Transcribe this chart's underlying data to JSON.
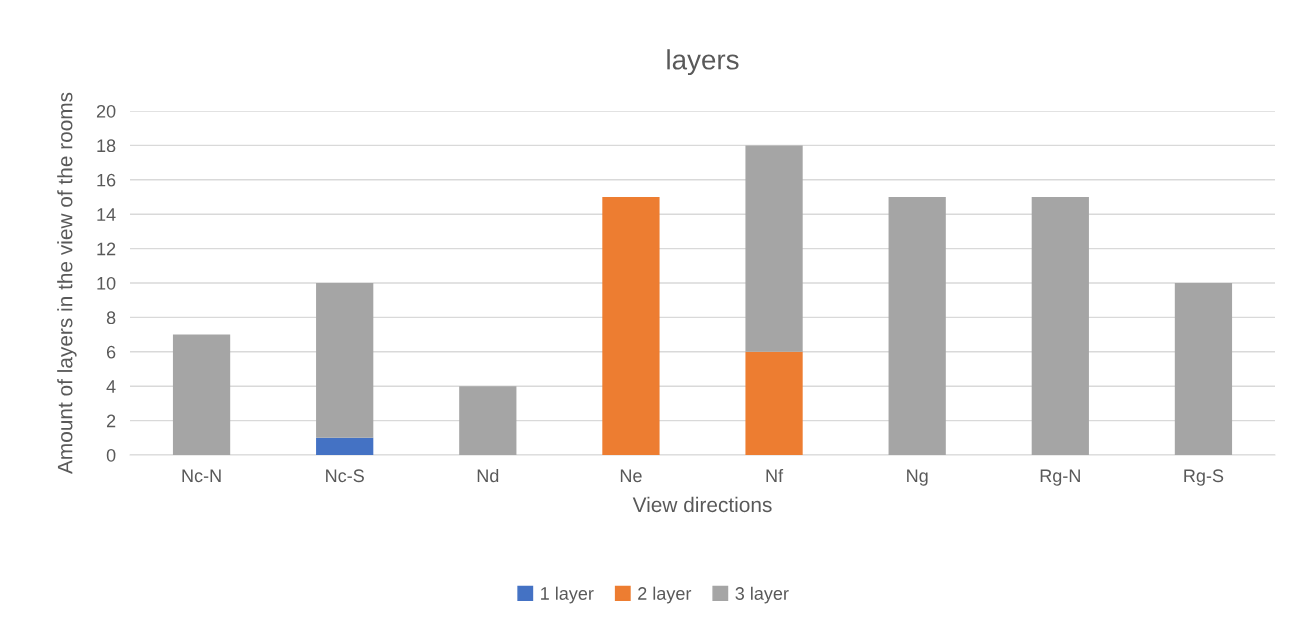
{
  "chart_data": {
    "type": "bar",
    "title": "layers",
    "xlabel": "View directions",
    "ylabel": "Amount of layers in the view of the rooms",
    "categories": [
      "Nc-N",
      "Nc-S",
      "Nd",
      "Ne",
      "Nf",
      "Ng",
      "Rg-N",
      "Rg-S"
    ],
    "series": [
      {
        "name": "1 layer",
        "color": "#4472c4",
        "values": [
          null,
          1,
          null,
          null,
          null,
          null,
          null,
          null
        ]
      },
      {
        "name": "2 layer",
        "color": "#ed7d31",
        "values": [
          null,
          null,
          null,
          15,
          6,
          null,
          null,
          null
        ]
      },
      {
        "name": "3 layer",
        "color": "#a5a5a5",
        "values": [
          7,
          9,
          4,
          null,
          12,
          15,
          15,
          10
        ]
      }
    ],
    "stacked": true,
    "ylim": [
      0,
      20
    ],
    "yticks": [
      0,
      2,
      4,
      6,
      8,
      10,
      12,
      14,
      16,
      18,
      20
    ],
    "grid": "y",
    "legend": "bottom"
  }
}
